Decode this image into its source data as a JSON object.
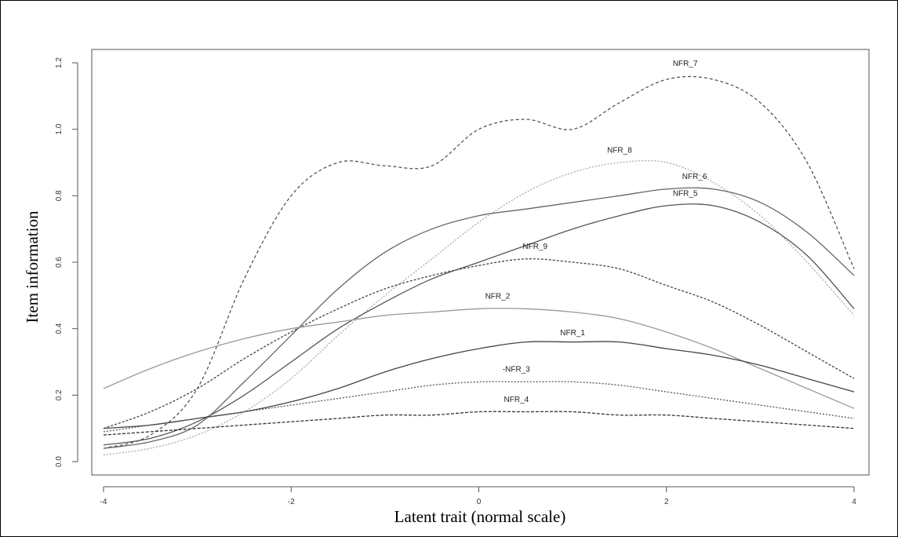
{
  "chart_data": {
    "type": "line",
    "title": "",
    "xlabel": "Latent trait (normal scale)",
    "ylabel": "Item information",
    "xlim": [
      -4,
      4
    ],
    "ylim": [
      0,
      1.2
    ],
    "xticks": [
      -4,
      -2,
      0,
      2,
      4
    ],
    "yticks": [
      0.0,
      0.2,
      0.4,
      0.6,
      0.8,
      1.0,
      1.2
    ],
    "xtick_labels": [
      "-4",
      "-2",
      "0",
      "2",
      "4"
    ],
    "ytick_labels": [
      "0.0",
      "0.2",
      "0.4",
      "0.6",
      "0.8",
      "1.0",
      "1.2"
    ],
    "grid": false,
    "legend": "inline labels",
    "series": [
      {
        "name": "NFR_7",
        "label_at": [
          2.2,
          1.19
        ],
        "color": "#555555",
        "dash": "4,3",
        "points": [
          [
            -4,
            0.04
          ],
          [
            -3.5,
            0.08
          ],
          [
            -3,
            0.22
          ],
          [
            -2.5,
            0.55
          ],
          [
            -2,
            0.8
          ],
          [
            -1.5,
            0.9
          ],
          [
            -1,
            0.89
          ],
          [
            -0.5,
            0.89
          ],
          [
            0,
            1.0
          ],
          [
            0.5,
            1.03
          ],
          [
            1,
            1.0
          ],
          [
            1.5,
            1.08
          ],
          [
            2,
            1.15
          ],
          [
            2.5,
            1.15
          ],
          [
            3,
            1.08
          ],
          [
            3.5,
            0.9
          ],
          [
            4,
            0.58
          ]
        ]
      },
      {
        "name": "NFR_8",
        "label_at": [
          1.5,
          0.93
        ],
        "color": "#aaaaaa",
        "dash": "2,2",
        "points": [
          [
            -4,
            0.02
          ],
          [
            -3.5,
            0.04
          ],
          [
            -3,
            0.08
          ],
          [
            -2.5,
            0.15
          ],
          [
            -2,
            0.25
          ],
          [
            -1.5,
            0.38
          ],
          [
            -1,
            0.5
          ],
          [
            -0.5,
            0.61
          ],
          [
            0,
            0.72
          ],
          [
            0.5,
            0.81
          ],
          [
            1,
            0.87
          ],
          [
            1.5,
            0.9
          ],
          [
            2,
            0.9
          ],
          [
            2.5,
            0.84
          ],
          [
            3,
            0.74
          ],
          [
            3.5,
            0.6
          ],
          [
            4,
            0.44
          ]
        ]
      },
      {
        "name": "NFR_6",
        "label_at": [
          2.3,
          0.85
        ],
        "color": "#666666",
        "dash": "",
        "points": [
          [
            -4,
            0.04
          ],
          [
            -3.5,
            0.06
          ],
          [
            -3,
            0.11
          ],
          [
            -2.5,
            0.24
          ],
          [
            -2,
            0.38
          ],
          [
            -1.5,
            0.52
          ],
          [
            -1,
            0.63
          ],
          [
            -0.5,
            0.7
          ],
          [
            0,
            0.74
          ],
          [
            0.5,
            0.76
          ],
          [
            1,
            0.78
          ],
          [
            1.5,
            0.8
          ],
          [
            2,
            0.82
          ],
          [
            2.5,
            0.82
          ],
          [
            3,
            0.78
          ],
          [
            3.5,
            0.69
          ],
          [
            4,
            0.56
          ]
        ]
      },
      {
        "name": "NFR_5",
        "label_at": [
          2.2,
          0.8
        ],
        "color": "#555555",
        "dash": "",
        "points": [
          [
            -4,
            0.05
          ],
          [
            -3.5,
            0.07
          ],
          [
            -3,
            0.12
          ],
          [
            -2.5,
            0.2
          ],
          [
            -2,
            0.3
          ],
          [
            -1.5,
            0.4
          ],
          [
            -1,
            0.48
          ],
          [
            -0.5,
            0.55
          ],
          [
            0,
            0.6
          ],
          [
            0.5,
            0.65
          ],
          [
            1,
            0.7
          ],
          [
            1.5,
            0.74
          ],
          [
            2,
            0.77
          ],
          [
            2.5,
            0.77
          ],
          [
            3,
            0.72
          ],
          [
            3.5,
            0.62
          ],
          [
            4,
            0.46
          ]
        ]
      },
      {
        "name": "NFR_9",
        "label_at": [
          0.6,
          0.64
        ],
        "color": "#444444",
        "dash": "3,2",
        "points": [
          [
            -4,
            0.1
          ],
          [
            -3.5,
            0.15
          ],
          [
            -3,
            0.22
          ],
          [
            -2.5,
            0.31
          ],
          [
            -2,
            0.39
          ],
          [
            -1.5,
            0.46
          ],
          [
            -1,
            0.52
          ],
          [
            -0.5,
            0.56
          ],
          [
            0,
            0.59
          ],
          [
            0.5,
            0.61
          ],
          [
            1,
            0.6
          ],
          [
            1.5,
            0.58
          ],
          [
            2,
            0.53
          ],
          [
            2.5,
            0.48
          ],
          [
            3,
            0.41
          ],
          [
            3.5,
            0.33
          ],
          [
            4,
            0.25
          ]
        ]
      },
      {
        "name": "NFR_2",
        "label_at": [
          0.2,
          0.49
        ],
        "color": "#999999",
        "dash": "",
        "points": [
          [
            -4,
            0.22
          ],
          [
            -3.5,
            0.28
          ],
          [
            -3,
            0.33
          ],
          [
            -2.5,
            0.37
          ],
          [
            -2,
            0.4
          ],
          [
            -1.5,
            0.42
          ],
          [
            -1,
            0.44
          ],
          [
            -0.5,
            0.45
          ],
          [
            0,
            0.46
          ],
          [
            0.5,
            0.46
          ],
          [
            1,
            0.45
          ],
          [
            1.5,
            0.43
          ],
          [
            2,
            0.39
          ],
          [
            2.5,
            0.34
          ],
          [
            3,
            0.28
          ],
          [
            3.5,
            0.22
          ],
          [
            4,
            0.16
          ]
        ]
      },
      {
        "name": "NFR_1",
        "label_at": [
          1.0,
          0.38
        ],
        "color": "#444444",
        "dash": "",
        "points": [
          [
            -4,
            0.1
          ],
          [
            -3.5,
            0.11
          ],
          [
            -3,
            0.13
          ],
          [
            -2.5,
            0.15
          ],
          [
            -2,
            0.18
          ],
          [
            -1.5,
            0.22
          ],
          [
            -1,
            0.27
          ],
          [
            -0.5,
            0.31
          ],
          [
            0,
            0.34
          ],
          [
            0.5,
            0.36
          ],
          [
            1,
            0.36
          ],
          [
            1.5,
            0.36
          ],
          [
            2,
            0.34
          ],
          [
            2.5,
            0.32
          ],
          [
            3,
            0.29
          ],
          [
            3.5,
            0.25
          ],
          [
            4,
            0.21
          ]
        ]
      },
      {
        "name": "-NFR_3",
        "label_at": [
          0.4,
          0.27
        ],
        "color": "#555555",
        "dash": "2,2",
        "points": [
          [
            -4,
            0.09
          ],
          [
            -3.5,
            0.11
          ],
          [
            -3,
            0.13
          ],
          [
            -2.5,
            0.15
          ],
          [
            -2,
            0.17
          ],
          [
            -1.5,
            0.19
          ],
          [
            -1,
            0.21
          ],
          [
            -0.5,
            0.23
          ],
          [
            0,
            0.24
          ],
          [
            0.5,
            0.24
          ],
          [
            1,
            0.24
          ],
          [
            1.5,
            0.23
          ],
          [
            2,
            0.21
          ],
          [
            2.5,
            0.19
          ],
          [
            3,
            0.17
          ],
          [
            3.5,
            0.15
          ],
          [
            4,
            0.13
          ]
        ]
      },
      {
        "name": "NFR_4",
        "label_at": [
          0.4,
          0.18
        ],
        "color": "#333333",
        "dash": "4,2",
        "points": [
          [
            -4,
            0.08
          ],
          [
            -3.5,
            0.09
          ],
          [
            -3,
            0.1
          ],
          [
            -2.5,
            0.11
          ],
          [
            -2,
            0.12
          ],
          [
            -1.5,
            0.13
          ],
          [
            -1,
            0.14
          ],
          [
            -0.5,
            0.14
          ],
          [
            0,
            0.15
          ],
          [
            0.5,
            0.15
          ],
          [
            1,
            0.15
          ],
          [
            1.5,
            0.14
          ],
          [
            2,
            0.14
          ],
          [
            2.5,
            0.13
          ],
          [
            3,
            0.12
          ],
          [
            3.5,
            0.11
          ],
          [
            4,
            0.1
          ]
        ]
      }
    ]
  }
}
